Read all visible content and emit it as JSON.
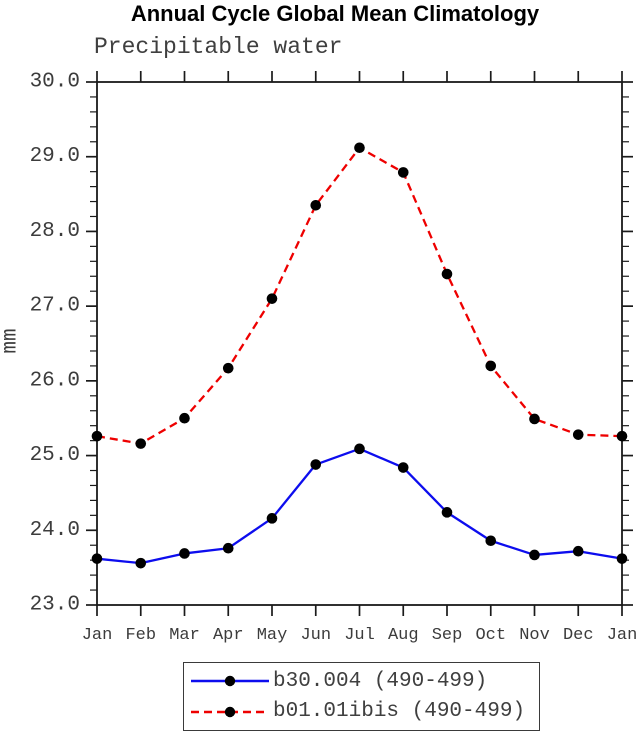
{
  "title": "Annual Cycle Global Mean Climatology",
  "chart_data": {
    "type": "line",
    "title": "Annual Cycle Global Mean Climatology",
    "subtitle": "Precipitable water",
    "ylabel": "mm",
    "xlabel": "",
    "ylim": [
      23.0,
      30.0
    ],
    "y_major_tick_step": 1.0,
    "y_minor_tick_step": 0.2,
    "y_tick_labels": [
      "23.0",
      "24.0",
      "25.0",
      "26.0",
      "27.0",
      "28.0",
      "29.0",
      "30.0"
    ],
    "x_tick_labels": [
      "Jan",
      "Feb",
      "Mar",
      "Apr",
      "May",
      "Jun",
      "Jul",
      "Aug",
      "Sep",
      "Oct",
      "Nov",
      "Dec",
      "Jan"
    ],
    "grid": false,
    "legend_position": "bottom-center",
    "marker": {
      "shape": "circle",
      "color": "#000000",
      "radius_px": 5.3
    },
    "axis_color": "#1a1a1a",
    "series": [
      {
        "name": "b30.004 (490-499)",
        "color": "#0d0dee",
        "line_style": "solid",
        "values": [
          23.62,
          23.56,
          23.69,
          23.76,
          24.16,
          24.88,
          25.09,
          24.84,
          24.24,
          23.86,
          23.67,
          23.72,
          23.62
        ]
      },
      {
        "name": "b01.01ibis (490-499)",
        "color": "#ee0000",
        "line_style": "dashed",
        "values": [
          25.26,
          25.16,
          25.5,
          26.17,
          27.1,
          28.35,
          29.12,
          28.79,
          27.43,
          26.2,
          25.49,
          25.28,
          25.26
        ]
      }
    ]
  }
}
